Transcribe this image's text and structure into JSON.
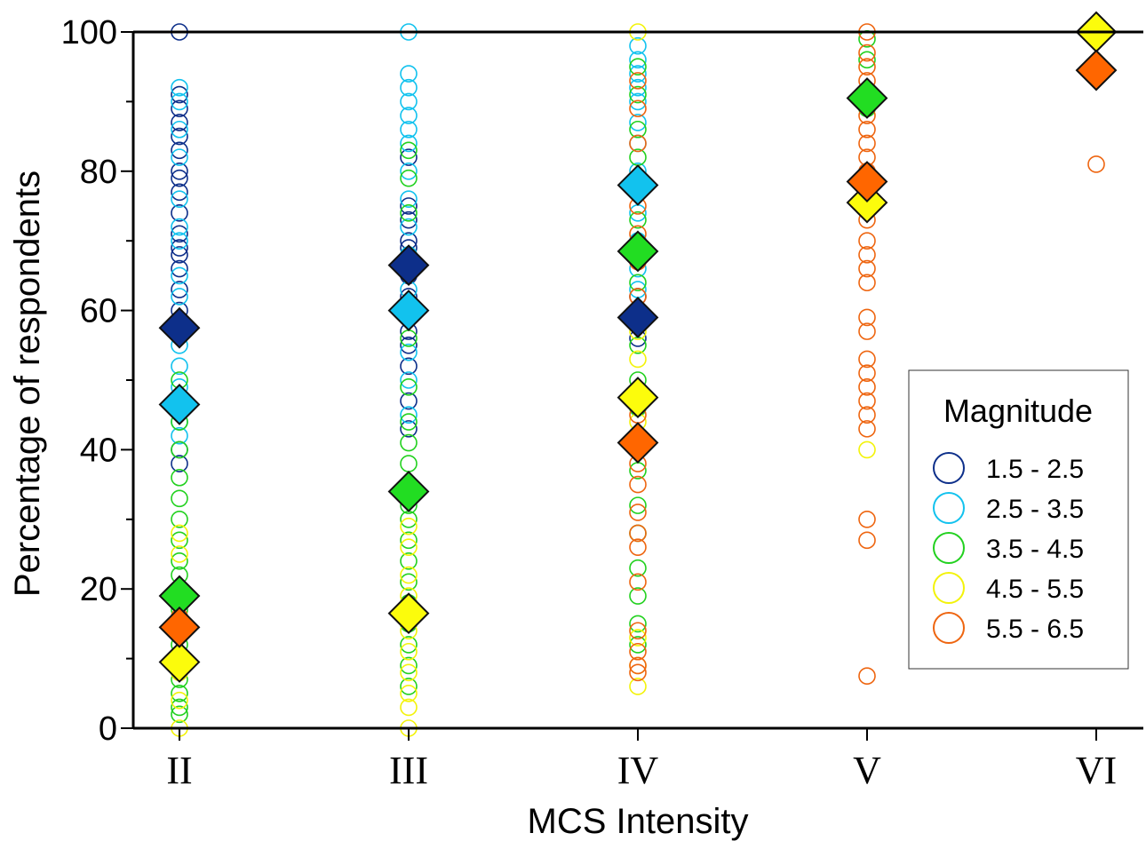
{
  "chart_data": {
    "type": "scatter",
    "xlabel": "MCS Intensity",
    "ylabel": "Percentage of respondents",
    "ylim": [
      0,
      100
    ],
    "yticks": [
      "0",
      "20",
      "40",
      "60",
      "80",
      "100"
    ],
    "categories": [
      "II",
      "III",
      "IV",
      "V",
      "VI"
    ],
    "grid": false,
    "legend": {
      "title": "Magnitude",
      "placement": "right",
      "entries": [
        {
          "label": "1.5 - 2.5",
          "color": "#0d2f8a"
        },
        {
          "label": "2.5 - 3.5",
          "color": "#12c2ee"
        },
        {
          "label": "3.5 - 4.5",
          "color": "#22d11f"
        },
        {
          "label": "4.5 - 5.5",
          "color": "#f3f30a"
        },
        {
          "label": "5.5 - 6.5",
          "color": "#ee6510"
        }
      ]
    },
    "fill_colors": [
      "#0d2f8a",
      "#12c2ee",
      "#22dd22",
      "#fcfc0c",
      "#ff6600"
    ],
    "series": [
      {
        "name": "1.5 - 2.5",
        "marker": "circle",
        "points": [
          {
            "x": "II",
            "y": 100
          },
          {
            "x": "II",
            "y": 91
          },
          {
            "x": "II",
            "y": 89
          },
          {
            "x": "II",
            "y": 87
          },
          {
            "x": "II",
            "y": 85
          },
          {
            "x": "II",
            "y": 83
          },
          {
            "x": "II",
            "y": 80
          },
          {
            "x": "II",
            "y": 79
          },
          {
            "x": "II",
            "y": 77
          },
          {
            "x": "II",
            "y": 74
          },
          {
            "x": "II",
            "y": 71
          },
          {
            "x": "II",
            "y": 69
          },
          {
            "x": "II",
            "y": 68
          },
          {
            "x": "II",
            "y": 66
          },
          {
            "x": "II",
            "y": 63
          },
          {
            "x": "II",
            "y": 60
          },
          {
            "x": "II",
            "y": 40
          },
          {
            "x": "II",
            "y": 38
          },
          {
            "x": "III",
            "y": 82
          },
          {
            "x": "III",
            "y": 75
          },
          {
            "x": "III",
            "y": 73
          },
          {
            "x": "III",
            "y": 70
          },
          {
            "x": "III",
            "y": 69
          },
          {
            "x": "III",
            "y": 65
          },
          {
            "x": "III",
            "y": 62
          },
          {
            "x": "III",
            "y": 57
          },
          {
            "x": "III",
            "y": 55
          },
          {
            "x": "III",
            "y": 52
          },
          {
            "x": "III",
            "y": 47
          },
          {
            "x": "III",
            "y": 43
          },
          {
            "x": "IV",
            "y": 62
          },
          {
            "x": "IV",
            "y": 60
          },
          {
            "x": "IV",
            "y": 58
          },
          {
            "x": "IV",
            "y": 56
          }
        ]
      },
      {
        "name": "2.5 - 3.5",
        "marker": "circle",
        "points": [
          {
            "x": "II",
            "y": 92
          },
          {
            "x": "II",
            "y": 90
          },
          {
            "x": "II",
            "y": 86
          },
          {
            "x": "II",
            "y": 82
          },
          {
            "x": "II",
            "y": 76
          },
          {
            "x": "II",
            "y": 72
          },
          {
            "x": "II",
            "y": 70
          },
          {
            "x": "II",
            "y": 65
          },
          {
            "x": "II",
            "y": 62
          },
          {
            "x": "II",
            "y": 58
          },
          {
            "x": "II",
            "y": 55
          },
          {
            "x": "II",
            "y": 52
          },
          {
            "x": "II",
            "y": 49
          },
          {
            "x": "II",
            "y": 46
          },
          {
            "x": "II",
            "y": 44
          },
          {
            "x": "II",
            "y": 42
          },
          {
            "x": "III",
            "y": 100
          },
          {
            "x": "III",
            "y": 94
          },
          {
            "x": "III",
            "y": 92
          },
          {
            "x": "III",
            "y": 90
          },
          {
            "x": "III",
            "y": 88
          },
          {
            "x": "III",
            "y": 86
          },
          {
            "x": "III",
            "y": 84
          },
          {
            "x": "III",
            "y": 80
          },
          {
            "x": "III",
            "y": 76
          },
          {
            "x": "III",
            "y": 72
          },
          {
            "x": "III",
            "y": 68
          },
          {
            "x": "III",
            "y": 63
          },
          {
            "x": "III",
            "y": 59
          },
          {
            "x": "III",
            "y": 54
          },
          {
            "x": "III",
            "y": 50
          },
          {
            "x": "III",
            "y": 45
          },
          {
            "x": "IV",
            "y": 98
          },
          {
            "x": "IV",
            "y": 96
          },
          {
            "x": "IV",
            "y": 94
          },
          {
            "x": "IV",
            "y": 92
          },
          {
            "x": "IV",
            "y": 90
          },
          {
            "x": "IV",
            "y": 87
          },
          {
            "x": "IV",
            "y": 84
          },
          {
            "x": "IV",
            "y": 80
          },
          {
            "x": "IV",
            "y": 77
          },
          {
            "x": "IV",
            "y": 74
          },
          {
            "x": "IV",
            "y": 70
          },
          {
            "x": "IV",
            "y": 66
          },
          {
            "x": "IV",
            "y": 63
          }
        ]
      },
      {
        "name": "3.5 - 4.5",
        "marker": "circle",
        "points": [
          {
            "x": "II",
            "y": 50
          },
          {
            "x": "II",
            "y": 44
          },
          {
            "x": "II",
            "y": 40
          },
          {
            "x": "II",
            "y": 36
          },
          {
            "x": "II",
            "y": 33
          },
          {
            "x": "II",
            "y": 30
          },
          {
            "x": "II",
            "y": 27
          },
          {
            "x": "II",
            "y": 24
          },
          {
            "x": "II",
            "y": 22
          },
          {
            "x": "II",
            "y": 20
          },
          {
            "x": "II",
            "y": 17
          },
          {
            "x": "II",
            "y": 15
          },
          {
            "x": "II",
            "y": 12
          },
          {
            "x": "II",
            "y": 10
          },
          {
            "x": "II",
            "y": 7
          },
          {
            "x": "II",
            "y": 5
          },
          {
            "x": "II",
            "y": 3
          },
          {
            "x": "II",
            "y": 2
          },
          {
            "x": "III",
            "y": 83
          },
          {
            "x": "III",
            "y": 79
          },
          {
            "x": "III",
            "y": 74
          },
          {
            "x": "III",
            "y": 66
          },
          {
            "x": "III",
            "y": 61
          },
          {
            "x": "III",
            "y": 56
          },
          {
            "x": "III",
            "y": 49
          },
          {
            "x": "III",
            "y": 44
          },
          {
            "x": "III",
            "y": 41
          },
          {
            "x": "III",
            "y": 38
          },
          {
            "x": "III",
            "y": 35
          },
          {
            "x": "III",
            "y": 32
          },
          {
            "x": "III",
            "y": 30
          },
          {
            "x": "III",
            "y": 27
          },
          {
            "x": "III",
            "y": 24
          },
          {
            "x": "III",
            "y": 21
          },
          {
            "x": "III",
            "y": 18
          },
          {
            "x": "III",
            "y": 15
          },
          {
            "x": "III",
            "y": 12
          },
          {
            "x": "III",
            "y": 9
          },
          {
            "x": "III",
            "y": 6
          },
          {
            "x": "IV",
            "y": 95
          },
          {
            "x": "IV",
            "y": 91
          },
          {
            "x": "IV",
            "y": 86
          },
          {
            "x": "IV",
            "y": 82
          },
          {
            "x": "IV",
            "y": 78
          },
          {
            "x": "IV",
            "y": 73
          },
          {
            "x": "IV",
            "y": 68
          },
          {
            "x": "IV",
            "y": 64
          },
          {
            "x": "IV",
            "y": 59
          },
          {
            "x": "IV",
            "y": 55
          },
          {
            "x": "IV",
            "y": 50
          },
          {
            "x": "IV",
            "y": 46
          },
          {
            "x": "IV",
            "y": 42
          },
          {
            "x": "IV",
            "y": 37
          },
          {
            "x": "IV",
            "y": 32
          },
          {
            "x": "IV",
            "y": 28
          },
          {
            "x": "IV",
            "y": 23
          },
          {
            "x": "IV",
            "y": 19
          },
          {
            "x": "IV",
            "y": 15
          },
          {
            "x": "IV",
            "y": 12
          },
          {
            "x": "V",
            "y": 99
          },
          {
            "x": "V",
            "y": 96
          },
          {
            "x": "V",
            "y": 89
          }
        ]
      },
      {
        "name": "4.5 - 5.5",
        "marker": "circle",
        "points": [
          {
            "x": "II",
            "y": 28
          },
          {
            "x": "II",
            "y": 25
          },
          {
            "x": "II",
            "y": 19
          },
          {
            "x": "II",
            "y": 14
          },
          {
            "x": "II",
            "y": 8
          },
          {
            "x": "II",
            "y": 4
          },
          {
            "x": "II",
            "y": 0
          },
          {
            "x": "III",
            "y": 29
          },
          {
            "x": "III",
            "y": 26
          },
          {
            "x": "III",
            "y": 22
          },
          {
            "x": "III",
            "y": 19
          },
          {
            "x": "III",
            "y": 14
          },
          {
            "x": "III",
            "y": 11
          },
          {
            "x": "III",
            "y": 8
          },
          {
            "x": "III",
            "y": 5
          },
          {
            "x": "III",
            "y": 3
          },
          {
            "x": "III",
            "y": 0
          },
          {
            "x": "IV",
            "y": 100
          },
          {
            "x": "IV",
            "y": 57
          },
          {
            "x": "IV",
            "y": 53
          },
          {
            "x": "IV",
            "y": 48
          },
          {
            "x": "IV",
            "y": 44
          },
          {
            "x": "IV",
            "y": 13
          },
          {
            "x": "IV",
            "y": 9
          },
          {
            "x": "IV",
            "y": 6
          },
          {
            "x": "V",
            "y": 40
          }
        ]
      },
      {
        "name": "5.5 - 6.5",
        "marker": "circle",
        "points": [
          {
            "x": "II",
            "y": 16
          },
          {
            "x": "IV",
            "y": 93
          },
          {
            "x": "IV",
            "y": 89
          },
          {
            "x": "IV",
            "y": 84
          },
          {
            "x": "IV",
            "y": 79
          },
          {
            "x": "IV",
            "y": 75
          },
          {
            "x": "IV",
            "y": 71
          },
          {
            "x": "IV",
            "y": 67
          },
          {
            "x": "IV",
            "y": 62
          },
          {
            "x": "IV",
            "y": 45
          },
          {
            "x": "IV",
            "y": 41
          },
          {
            "x": "IV",
            "y": 38
          },
          {
            "x": "IV",
            "y": 35
          },
          {
            "x": "IV",
            "y": 31
          },
          {
            "x": "IV",
            "y": 28
          },
          {
            "x": "IV",
            "y": 26
          },
          {
            "x": "IV",
            "y": 21
          },
          {
            "x": "IV",
            "y": 14
          },
          {
            "x": "IV",
            "y": 11
          },
          {
            "x": "IV",
            "y": 9
          },
          {
            "x": "IV",
            "y": 8
          },
          {
            "x": "V",
            "y": 100
          },
          {
            "x": "V",
            "y": 97
          },
          {
            "x": "V",
            "y": 95
          },
          {
            "x": "V",
            "y": 93
          },
          {
            "x": "V",
            "y": 91
          },
          {
            "x": "V",
            "y": 88
          },
          {
            "x": "V",
            "y": 86
          },
          {
            "x": "V",
            "y": 84
          },
          {
            "x": "V",
            "y": 82
          },
          {
            "x": "V",
            "y": 80
          },
          {
            "x": "V",
            "y": 77
          },
          {
            "x": "V",
            "y": 73
          },
          {
            "x": "V",
            "y": 70
          },
          {
            "x": "V",
            "y": 68
          },
          {
            "x": "V",
            "y": 66
          },
          {
            "x": "V",
            "y": 64
          },
          {
            "x": "V",
            "y": 59
          },
          {
            "x": "V",
            "y": 57
          },
          {
            "x": "V",
            "y": 53
          },
          {
            "x": "V",
            "y": 51
          },
          {
            "x": "V",
            "y": 49
          },
          {
            "x": "V",
            "y": 47
          },
          {
            "x": "V",
            "y": 45
          },
          {
            "x": "V",
            "y": 43
          },
          {
            "x": "V",
            "y": 30
          },
          {
            "x": "V",
            "y": 27
          },
          {
            "x": "V",
            "y": 7.5
          },
          {
            "x": "VI",
            "y": 81
          }
        ]
      }
    ],
    "means": [
      {
        "name": "1.5 - 2.5",
        "marker": "diamond",
        "points": [
          {
            "x": "II",
            "y": 57.5
          },
          {
            "x": "III",
            "y": 66.5
          },
          {
            "x": "IV",
            "y": 59
          }
        ]
      },
      {
        "name": "2.5 - 3.5",
        "marker": "diamond",
        "points": [
          {
            "x": "II",
            "y": 46.5
          },
          {
            "x": "III",
            "y": 60
          },
          {
            "x": "IV",
            "y": 78
          }
        ]
      },
      {
        "name": "3.5 - 4.5",
        "marker": "diamond",
        "points": [
          {
            "x": "II",
            "y": 19
          },
          {
            "x": "III",
            "y": 34
          },
          {
            "x": "IV",
            "y": 68.5
          },
          {
            "x": "V",
            "y": 90.5
          }
        ]
      },
      {
        "name": "4.5 - 5.5",
        "marker": "diamond",
        "points": [
          {
            "x": "II",
            "y": 9.5
          },
          {
            "x": "III",
            "y": 16.5
          },
          {
            "x": "IV",
            "y": 47.5
          },
          {
            "x": "V",
            "y": 75.5
          },
          {
            "x": "VI",
            "y": 100
          }
        ]
      },
      {
        "name": "5.5 - 6.5",
        "marker": "diamond",
        "points": [
          {
            "x": "II",
            "y": 14.5
          },
          {
            "x": "IV",
            "y": 41
          },
          {
            "x": "V",
            "y": 78.5
          },
          {
            "x": "VI",
            "y": 94.5
          }
        ]
      }
    ]
  }
}
